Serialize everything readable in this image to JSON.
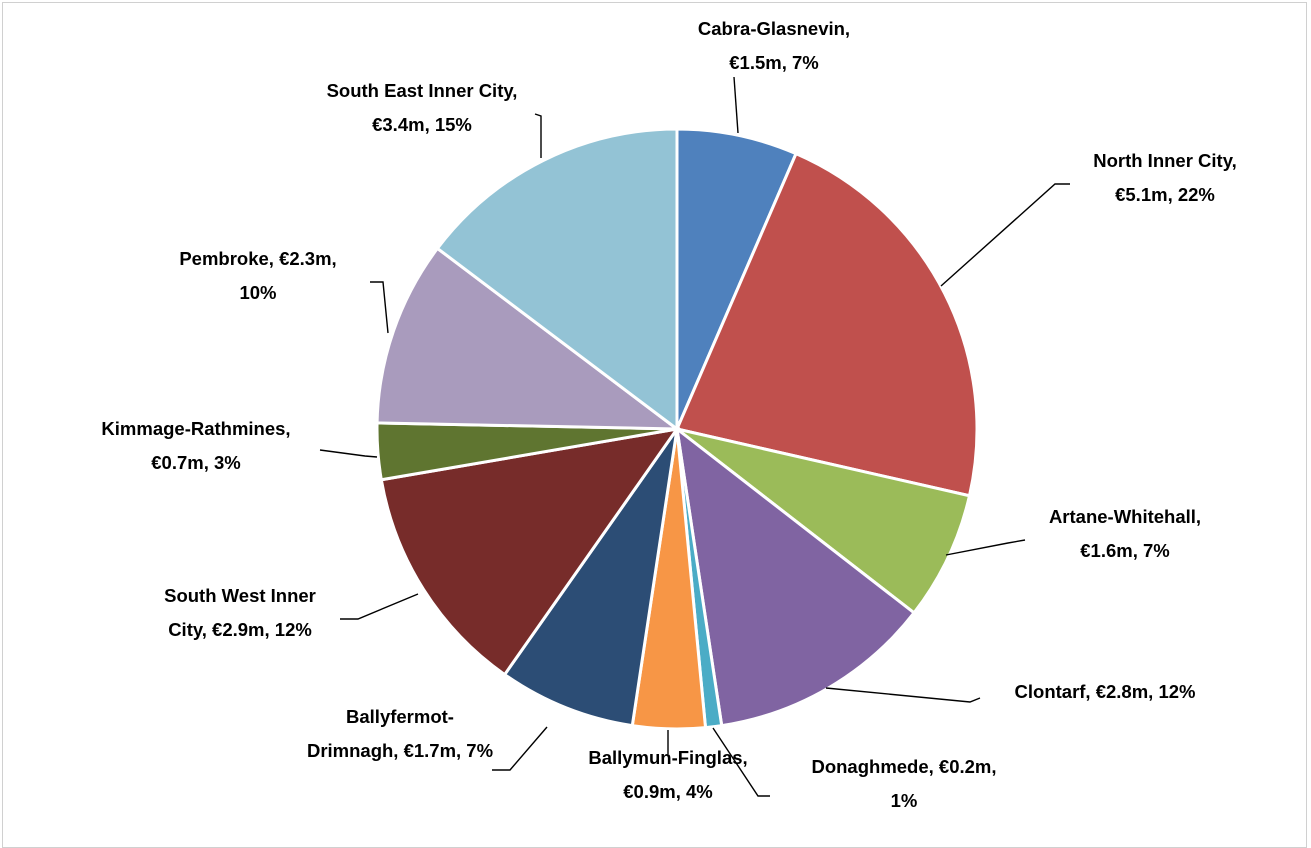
{
  "chart_data": {
    "type": "pie",
    "title": "",
    "start_angle_deg": 0,
    "direction": "clockwise",
    "slices": [
      {
        "name": "Cabra-Glasnevin",
        "value": 1.5,
        "value_label": "€1.5m",
        "percent_label": "7%",
        "color": "#4f81bd"
      },
      {
        "name": "North Inner City",
        "value": 5.1,
        "value_label": "€5.1m",
        "percent_label": "22%",
        "color": "#c0504d"
      },
      {
        "name": "Artane-Whitehall",
        "value": 1.6,
        "value_label": "€1.6m",
        "percent_label": "7%",
        "color": "#9bbb59"
      },
      {
        "name": "Clontarf",
        "value": 2.8,
        "value_label": "€2.8m",
        "percent_label": "12%",
        "color": "#8064a2"
      },
      {
        "name": "Donaghmede",
        "value": 0.2,
        "value_label": "€0.2m",
        "percent_label": "1%",
        "color": "#4bacc6"
      },
      {
        "name": "Ballymun-Finglas",
        "value": 0.9,
        "value_label": "€0.9m",
        "percent_label": "4%",
        "color": "#f79646"
      },
      {
        "name": "Ballyfermot-Drimnagh",
        "value": 1.7,
        "value_label": "€1.7m",
        "percent_label": "7%",
        "color": "#2c4d75"
      },
      {
        "name": "South West Inner City",
        "value": 2.9,
        "value_label": "€2.9m",
        "percent_label": "12%",
        "color": "#772c2a"
      },
      {
        "name": "Kimmage-Rathmines",
        "value": 0.7,
        "value_label": "€0.7m",
        "percent_label": "3%",
        "color": "#5f7530"
      },
      {
        "name": "Pembroke",
        "value": 2.3,
        "value_label": "€2.3m",
        "percent_label": "10%",
        "color": "#a99bbd"
      },
      {
        "name": "South East Inner City",
        "value": 3.4,
        "value_label": "€3.4m",
        "percent_label": "15%",
        "color": "#93c3d5"
      }
    ],
    "labels": [
      {
        "lines": [
          "Cabra-Glasnevin,",
          "€1.5m, 7%"
        ]
      },
      {
        "lines": [
          "North Inner City,",
          "€5.1m, 22%"
        ]
      },
      {
        "lines": [
          "Artane-Whitehall,",
          "€1.6m, 7%"
        ]
      },
      {
        "lines": [
          "Clontarf, €2.8m, 12%"
        ]
      },
      {
        "lines": [
          "Donaghmede, €0.2m,",
          "1%"
        ]
      },
      {
        "lines": [
          "Ballymun-Finglas,",
          "€0.9m, 4%"
        ]
      },
      {
        "lines": [
          "Ballyfermot-",
          "Drimnagh, €1.7m, 7%"
        ]
      },
      {
        "lines": [
          "South West Inner",
          "City, €2.9m, 12%"
        ]
      },
      {
        "lines": [
          "Kimmage-Rathmines,",
          "€0.7m, 3%"
        ]
      },
      {
        "lines": [
          "Pembroke, €2.3m,",
          "10%"
        ]
      },
      {
        "lines": [
          "South East Inner City,",
          "€3.4m, 15%"
        ]
      }
    ],
    "legend": "none"
  }
}
